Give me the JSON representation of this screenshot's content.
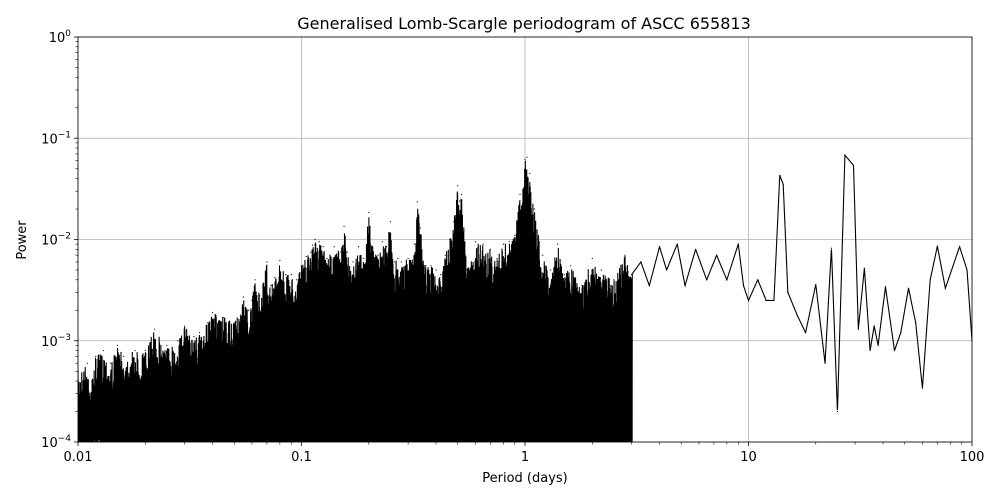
{
  "chart_data": {
    "type": "line",
    "title": "Generalised Lomb-Scargle periodogram of ASCC 655813",
    "xlabel": "Period (days)",
    "ylabel": "Power",
    "xscale": "log",
    "yscale": "log",
    "xlim": [
      0.01,
      100
    ],
    "ylim": [
      0.0001,
      1
    ],
    "grid": true,
    "line_color": "#000000",
    "x_ticks": [
      {
        "value": 0.01,
        "label": "0.01"
      },
      {
        "value": 0.1,
        "label": "0.1"
      },
      {
        "value": 1,
        "label": "1"
      },
      {
        "value": 10,
        "label": "10"
      },
      {
        "value": 100,
        "label": "100"
      }
    ],
    "y_ticks": [
      {
        "value": 0.0001,
        "base": "10",
        "exp": "−4"
      },
      {
        "value": 0.001,
        "base": "10",
        "exp": "−3"
      },
      {
        "value": 0.01,
        "base": "10",
        "exp": "−2"
      },
      {
        "value": 0.1,
        "base": "10",
        "exp": "−1"
      },
      {
        "value": 1,
        "base": "10",
        "exp": "0"
      }
    ],
    "series": [
      {
        "values_envelope_note": "",
        "points": [
          [
            0.01,
            0.0005
          ],
          [
            0.011,
            0.0006
          ],
          [
            0.0115,
            0.0004
          ],
          [
            0.012,
            0.0007
          ],
          [
            0.013,
            0.0008
          ],
          [
            0.014,
            0.0006
          ],
          [
            0.015,
            0.0009
          ],
          [
            0.016,
            0.0007
          ],
          [
            0.018,
            0.0008
          ],
          [
            0.02,
            0.0008
          ],
          [
            0.022,
            0.0013
          ],
          [
            0.025,
            0.0009
          ],
          [
            0.028,
            0.001
          ],
          [
            0.03,
            0.0014
          ],
          [
            0.033,
            0.0011
          ],
          [
            0.035,
            0.0012
          ],
          [
            0.038,
            0.0015
          ],
          [
            0.04,
            0.0019
          ],
          [
            0.045,
            0.0017
          ],
          [
            0.05,
            0.0015
          ],
          [
            0.055,
            0.0027
          ],
          [
            0.058,
            0.002
          ],
          [
            0.06,
            0.0025
          ],
          [
            0.062,
            0.004
          ],
          [
            0.065,
            0.0028
          ],
          [
            0.07,
            0.006
          ],
          [
            0.073,
            0.0035
          ],
          [
            0.076,
            0.0042
          ],
          [
            0.08,
            0.0062
          ],
          [
            0.085,
            0.0045
          ],
          [
            0.09,
            0.0045
          ],
          [
            0.095,
            0.004
          ],
          [
            0.1,
            0.0055
          ],
          [
            0.105,
            0.0068
          ],
          [
            0.11,
            0.0075
          ],
          [
            0.112,
            0.0088
          ],
          [
            0.115,
            0.01
          ],
          [
            0.12,
            0.0095
          ],
          [
            0.125,
            0.0085
          ],
          [
            0.13,
            0.0065
          ],
          [
            0.14,
            0.0085
          ],
          [
            0.15,
            0.0075
          ],
          [
            0.155,
            0.0135
          ],
          [
            0.16,
            0.0075
          ],
          [
            0.17,
            0.006
          ],
          [
            0.18,
            0.0085
          ],
          [
            0.19,
            0.0065
          ],
          [
            0.2,
            0.0185
          ],
          [
            0.21,
            0.0075
          ],
          [
            0.22,
            0.007
          ],
          [
            0.23,
            0.0095
          ],
          [
            0.24,
            0.0085
          ],
          [
            0.25,
            0.015
          ],
          [
            0.26,
            0.006
          ],
          [
            0.27,
            0.0065
          ],
          [
            0.28,
            0.006
          ],
          [
            0.3,
            0.0065
          ],
          [
            0.32,
            0.009
          ],
          [
            0.33,
            0.0235
          ],
          [
            0.34,
            0.013
          ],
          [
            0.36,
            0.0055
          ],
          [
            0.38,
            0.0055
          ],
          [
            0.4,
            0.005
          ],
          [
            0.42,
            0.0045
          ],
          [
            0.44,
            0.007
          ],
          [
            0.46,
            0.01
          ],
          [
            0.48,
            0.015
          ],
          [
            0.5,
            0.034
          ],
          [
            0.51,
            0.024
          ],
          [
            0.52,
            0.028
          ],
          [
            0.55,
            0.005
          ],
          [
            0.6,
            0.0095
          ],
          [
            0.65,
            0.009
          ],
          [
            0.7,
            0.008
          ],
          [
            0.75,
            0.0065
          ],
          [
            0.8,
            0.009
          ],
          [
            0.85,
            0.0095
          ],
          [
            0.9,
            0.011
          ],
          [
            0.95,
            0.028
          ],
          [
            1.0,
            0.062
          ],
          [
            1.02,
            0.065
          ],
          [
            1.05,
            0.045
          ],
          [
            1.1,
            0.02
          ],
          [
            1.15,
            0.011
          ],
          [
            1.2,
            0.007
          ],
          [
            1.3,
            0.005
          ],
          [
            1.4,
            0.009
          ],
          [
            1.5,
            0.0045
          ],
          [
            1.6,
            0.0055
          ],
          [
            1.8,
            0.0035
          ],
          [
            2.0,
            0.0065
          ],
          [
            2.2,
            0.005
          ],
          [
            2.5,
            0.004
          ],
          [
            2.8,
            0.007
          ],
          [
            3.0,
            0.0045
          ],
          [
            3.3,
            0.006
          ],
          [
            3.6,
            0.0035
          ],
          [
            4.0,
            0.0085
          ],
          [
            4.3,
            0.005
          ],
          [
            4.8,
            0.009
          ],
          [
            5.2,
            0.0035
          ],
          [
            5.8,
            0.008
          ],
          [
            6.5,
            0.004
          ],
          [
            7.2,
            0.007
          ],
          [
            8.0,
            0.004
          ],
          [
            9.0,
            0.009
          ],
          [
            9.5,
            0.0035
          ],
          [
            10.0,
            0.0025
          ],
          [
            11.0,
            0.004
          ],
          [
            12.0,
            0.0025
          ],
          [
            13.0,
            0.0025
          ],
          [
            13.8,
            0.043
          ],
          [
            14.3,
            0.035
          ],
          [
            15.0,
            0.003
          ],
          [
            16.5,
            0.0018
          ],
          [
            18.0,
            0.0012
          ],
          [
            20.0,
            0.0036
          ],
          [
            22.0,
            0.0006
          ],
          [
            23.5,
            0.0082
          ],
          [
            25.0,
            0.0002
          ],
          [
            27.0,
            0.068
          ],
          [
            29.5,
            0.054
          ],
          [
            31.0,
            0.0013
          ],
          [
            33.0,
            0.0052
          ],
          [
            35.0,
            0.0008
          ],
          [
            36.5,
            0.0014
          ],
          [
            38.0,
            0.0009
          ],
          [
            41.0,
            0.0034
          ],
          [
            45.0,
            0.0008
          ],
          [
            48.0,
            0.0012
          ],
          [
            52.0,
            0.0033
          ],
          [
            56.0,
            0.0015
          ],
          [
            60.0,
            0.00034
          ],
          [
            65.0,
            0.004
          ],
          [
            70.0,
            0.0086
          ],
          [
            76.0,
            0.0033
          ],
          [
            88.0,
            0.0085
          ],
          [
            95.0,
            0.005
          ],
          [
            100.0,
            0.001
          ]
        ]
      }
    ]
  }
}
